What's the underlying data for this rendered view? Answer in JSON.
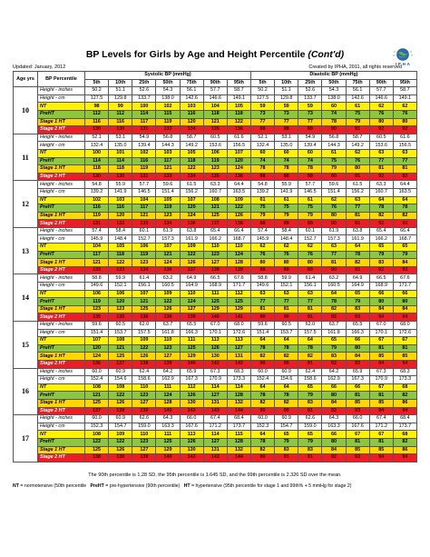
{
  "title_main": "BP Levels for Girls by Age and Height Percentile",
  "title_suffix": "(Cont'd)",
  "logo_text": "I P H A",
  "updated": "Updated: January, 2012",
  "created": "Created by IPHA, 2011, all rights reserved",
  "headers": {
    "age": "Age yrs",
    "bp_percentile": "BP Percentile",
    "systolic": "Systolic BP (mmHg)",
    "diastolic": "Diastolic BP (mmHg)",
    "percentiles": [
      "5th",
      "10th",
      "25th",
      "50th",
      "75th",
      "90th",
      "95th"
    ]
  },
  "row_labels": {
    "height_inches": "Height - inches",
    "height_cm": "Height - cm",
    "nt": "NT",
    "preht": "PreHT",
    "stage1": "Stage 1 HT",
    "stage2": "Stage 2 HT"
  },
  "ages": [
    {
      "age": "10",
      "inches": [
        "50.2",
        "51.1",
        "52.6",
        "54.3",
        "56.1",
        "57.7",
        "58.7",
        "50.2",
        "51.1",
        "52.6",
        "54.3",
        "56.1",
        "57.7",
        "58.7"
      ],
      "cm": [
        "127.5",
        "129.8",
        "133.7",
        "138.0",
        "142.6",
        "146.6",
        "149.1",
        "127.5",
        "129.8",
        "133.7",
        "138.0",
        "142.6",
        "146.6",
        "149.1"
      ],
      "nt": [
        "98",
        "99",
        "100",
        "102",
        "103",
        "104",
        "105",
        "59",
        "59",
        "59",
        "60",
        "61",
        "62",
        "62"
      ],
      "preht": [
        "112",
        "112",
        "114",
        "115",
        "116",
        "118",
        "118",
        "73",
        "73",
        "73",
        "74",
        "75",
        "76",
        "76"
      ],
      "stage1": [
        "116",
        "116",
        "117",
        "119",
        "120",
        "121",
        "122",
        "77",
        "77",
        "77",
        "78",
        "79",
        "80",
        "80"
      ],
      "stage2": [
        "130",
        "130",
        "131",
        "133",
        "134",
        "135",
        "136",
        "88",
        "88",
        "89",
        "90",
        "91",
        "92",
        "92"
      ]
    },
    {
      "age": "11",
      "inches": [
        "52.1",
        "53.1",
        "54.9",
        "56.8",
        "58.7",
        "60.5",
        "61.6",
        "52.1",
        "53.1",
        "54.9",
        "56.8",
        "58.7",
        "60.5",
        "61.6"
      ],
      "cm": [
        "132.4",
        "135.0",
        "139.4",
        "144.3",
        "149.2",
        "153.6",
        "156.5",
        "132.4",
        "135.0",
        "139.4",
        "144.3",
        "149.2",
        "153.6",
        "156.5"
      ],
      "nt": [
        "100",
        "101",
        "102",
        "103",
        "105",
        "106",
        "107",
        "60",
        "60",
        "60",
        "61",
        "62",
        "63",
        "63"
      ],
      "preht": [
        "114",
        "114",
        "116",
        "117",
        "118",
        "119",
        "120",
        "74",
        "74",
        "74",
        "75",
        "76",
        "77",
        "77"
      ],
      "stage1": [
        "118",
        "118",
        "119",
        "121",
        "122",
        "123",
        "124",
        "78",
        "78",
        "78",
        "79",
        "80",
        "81",
        "81"
      ],
      "stage2": [
        "130",
        "130",
        "131",
        "133",
        "134",
        "135",
        "136",
        "88",
        "88",
        "89",
        "90",
        "91",
        "92",
        "92"
      ]
    },
    {
      "age": "12",
      "inches": [
        "54.8",
        "55.9",
        "57.7",
        "59.6",
        "61.5",
        "63.3",
        "64.4",
        "54.8",
        "55.9",
        "57.7",
        "59.6",
        "61.5",
        "63.3",
        "64.4"
      ],
      "cm": [
        "139.2",
        "141.9",
        "146.5",
        "151.4",
        "156.2",
        "160.7",
        "163.5",
        "139.2",
        "141.9",
        "146.5",
        "151.4",
        "156.2",
        "160.7",
        "163.5"
      ],
      "nt": [
        "102",
        "103",
        "104",
        "105",
        "107",
        "108",
        "109",
        "61",
        "61",
        "61",
        "62",
        "63",
        "64",
        "64"
      ],
      "preht": [
        "116",
        "116",
        "117",
        "119",
        "120",
        "121",
        "122",
        "75",
        "75",
        "75",
        "76",
        "77",
        "78",
        "78"
      ],
      "stage1": [
        "119",
        "120",
        "121",
        "123",
        "124",
        "125",
        "126",
        "79",
        "79",
        "79",
        "80",
        "81",
        "82",
        "82"
      ],
      "stage2": [
        "131",
        "132",
        "133",
        "134",
        "136",
        "137",
        "138",
        "88",
        "88",
        "89",
        "90",
        "91",
        "92",
        "92"
      ]
    },
    {
      "age": "13",
      "inches": [
        "57.4",
        "58.4",
        "60.1",
        "61.9",
        "63.8",
        "65.4",
        "66.4",
        "57.4",
        "58.4",
        "60.1",
        "61.9",
        "63.8",
        "65.4",
        "66.4"
      ],
      "cm": [
        "145.9",
        "148.4",
        "152.7",
        "157.3",
        "161.9",
        "166.2",
        "168.7",
        "145.9",
        "148.4",
        "152.7",
        "157.3",
        "161.9",
        "166.2",
        "168.7"
      ],
      "nt": [
        "104",
        "105",
        "106",
        "107",
        "109",
        "110",
        "110",
        "62",
        "62",
        "62",
        "63",
        "64",
        "65",
        "65"
      ],
      "preht": [
        "117",
        "118",
        "119",
        "121",
        "122",
        "123",
        "124",
        "76",
        "76",
        "76",
        "77",
        "78",
        "79",
        "79"
      ],
      "stage1": [
        "121",
        "122",
        "123",
        "124",
        "126",
        "127",
        "128",
        "80",
        "80",
        "80",
        "81",
        "82",
        "83",
        "84"
      ],
      "stage2": [
        "133",
        "133",
        "134",
        "136",
        "137",
        "138",
        "139",
        "88",
        "88",
        "89",
        "90",
        "91",
        "92",
        "92"
      ]
    },
    {
      "age": "14",
      "inches": [
        "58.8",
        "59.9",
        "61.4",
        "63.2",
        "64.9",
        "66.5",
        "67.6",
        "58.8",
        "59.9",
        "61.4",
        "63.2",
        "64.9",
        "66.5",
        "67.6"
      ],
      "cm": [
        "149.6",
        "152.1",
        "156.1",
        "160.5",
        "164.9",
        "168.9",
        "171.7",
        "149.6",
        "152.1",
        "156.1",
        "160.5",
        "164.9",
        "168.9",
        "171.7"
      ],
      "nt": [
        "106",
        "106",
        "107",
        "109",
        "110",
        "111",
        "112",
        "63",
        "63",
        "63",
        "64",
        "65",
        "66",
        "66"
      ],
      "preht": [
        "119",
        "120",
        "121",
        "122",
        "124",
        "125",
        "125",
        "77",
        "77",
        "77",
        "78",
        "79",
        "80",
        "80"
      ],
      "stage1": [
        "123",
        "123",
        "125",
        "126",
        "127",
        "129",
        "129",
        "81",
        "81",
        "81",
        "82",
        "83",
        "84",
        "84"
      ],
      "stage2": [
        "135",
        "135",
        "136",
        "138",
        "139",
        "140",
        "141",
        "90",
        "90",
        "91",
        "92",
        "93",
        "94",
        "94"
      ]
    },
    {
      "age": "15",
      "inches": [
        "59.6",
        "60.5",
        "62.0",
        "63.7",
        "65.5",
        "67.0",
        "68.0",
        "59.6",
        "60.5",
        "62.0",
        "63.7",
        "65.5",
        "67.0",
        "68.0"
      ],
      "cm": [
        "151.4",
        "153.7",
        "157.5",
        "161.8",
        "166.3",
        "170.1",
        "172.6",
        "151.4",
        "153.7",
        "157.5",
        "161.8",
        "166.3",
        "170.1",
        "172.6"
      ],
      "nt": [
        "107",
        "108",
        "109",
        "110",
        "111",
        "113",
        "113",
        "64",
        "64",
        "64",
        "65",
        "66",
        "67",
        "67"
      ],
      "preht": [
        "120",
        "121",
        "122",
        "123",
        "125",
        "126",
        "127",
        "78",
        "78",
        "78",
        "79",
        "80",
        "81",
        "81"
      ],
      "stage1": [
        "124",
        "125",
        "126",
        "127",
        "129",
        "130",
        "131",
        "82",
        "82",
        "82",
        "83",
        "84",
        "85",
        "85"
      ],
      "stage2": [
        "136",
        "137",
        "138",
        "139",
        "140",
        "142",
        "142",
        "90",
        "90",
        "91",
        "92",
        "93",
        "94",
        "94"
      ]
    },
    {
      "age": "16",
      "inches": [
        "60.0",
        "60.9",
        "62.4",
        "64.2",
        "65.9",
        "67.3",
        "68.3",
        "60.0",
        "60.9",
        "62.4",
        "64.2",
        "65.9",
        "67.3",
        "68.3"
      ],
      "cm": [
        "152.4",
        "154.6",
        "158.6",
        "162.9",
        "167.3",
        "170.9",
        "173.3",
        "152.4",
        "154.6",
        "158.6",
        "162.9",
        "167.3",
        "170.9",
        "173.3"
      ],
      "nt": [
        "108",
        "108",
        "110",
        "111",
        "112",
        "114",
        "114",
        "64",
        "64",
        "65",
        "66",
        "66",
        "67",
        "68"
      ],
      "preht": [
        "121",
        "122",
        "123",
        "124",
        "126",
        "127",
        "128",
        "78",
        "78",
        "79",
        "80",
        "81",
        "81",
        "82"
      ],
      "stage1": [
        "125",
        "126",
        "127",
        "128",
        "130",
        "131",
        "132",
        "82",
        "82",
        "83",
        "84",
        "85",
        "85",
        "86"
      ],
      "stage2": [
        "137",
        "138",
        "139",
        "140",
        "142",
        "143",
        "144",
        "90",
        "90",
        "91",
        "92",
        "93",
        "94",
        "94"
      ]
    },
    {
      "age": "17",
      "inches": [
        "60.0",
        "60.9",
        "62.6",
        "64.3",
        "66.0",
        "67.4",
        "68.4",
        "60.0",
        "60.9",
        "62.6",
        "64.3",
        "66.0",
        "67.4",
        "68.4"
      ],
      "cm": [
        "152.3",
        "154.7",
        "159.0",
        "163.3",
        "167.6",
        "171.2",
        "173.7",
        "152.3",
        "154.7",
        "159.0",
        "163.3",
        "167.6",
        "171.2",
        "173.7"
      ],
      "nt": [
        "108",
        "109",
        "110",
        "111",
        "113",
        "114",
        "115",
        "64",
        "65",
        "65",
        "66",
        "67",
        "67",
        "68"
      ],
      "preht": [
        "122",
        "122",
        "123",
        "125",
        "126",
        "127",
        "128",
        "78",
        "79",
        "79",
        "80",
        "81",
        "81",
        "82"
      ],
      "stage1": [
        "125",
        "126",
        "127",
        "129",
        "130",
        "131",
        "132",
        "82",
        "83",
        "83",
        "84",
        "85",
        "85",
        "86"
      ],
      "stage2": [
        "138",
        "138",
        "139",
        "140",
        "142",
        "143",
        "144",
        "90",
        "91",
        "91",
        "92",
        "93",
        "94",
        "94"
      ]
    }
  ],
  "footnote_percentiles": "The 90th percentile is 1.28 SD, the 95th percentile is 1.645 SD, and the 99th percentile is 2.326 SD over the mean.",
  "legend": {
    "nt_abbr": "NT",
    "nt_text": " = normotensive (50th percentile",
    "preht_abbr": "PreHT",
    "preht_text": " = pre-hypertensive (90th percentile)",
    "ht_abbr": "HT",
    "ht_text": " = hypertensive (95th percentile for stage 1 and 99th% + 5 mmHg for stage 2)"
  },
  "colors": {
    "nt": "#fff200",
    "preht": "#8dc63f",
    "stage1": "#ffd700",
    "stage2": "#ee1c24"
  }
}
